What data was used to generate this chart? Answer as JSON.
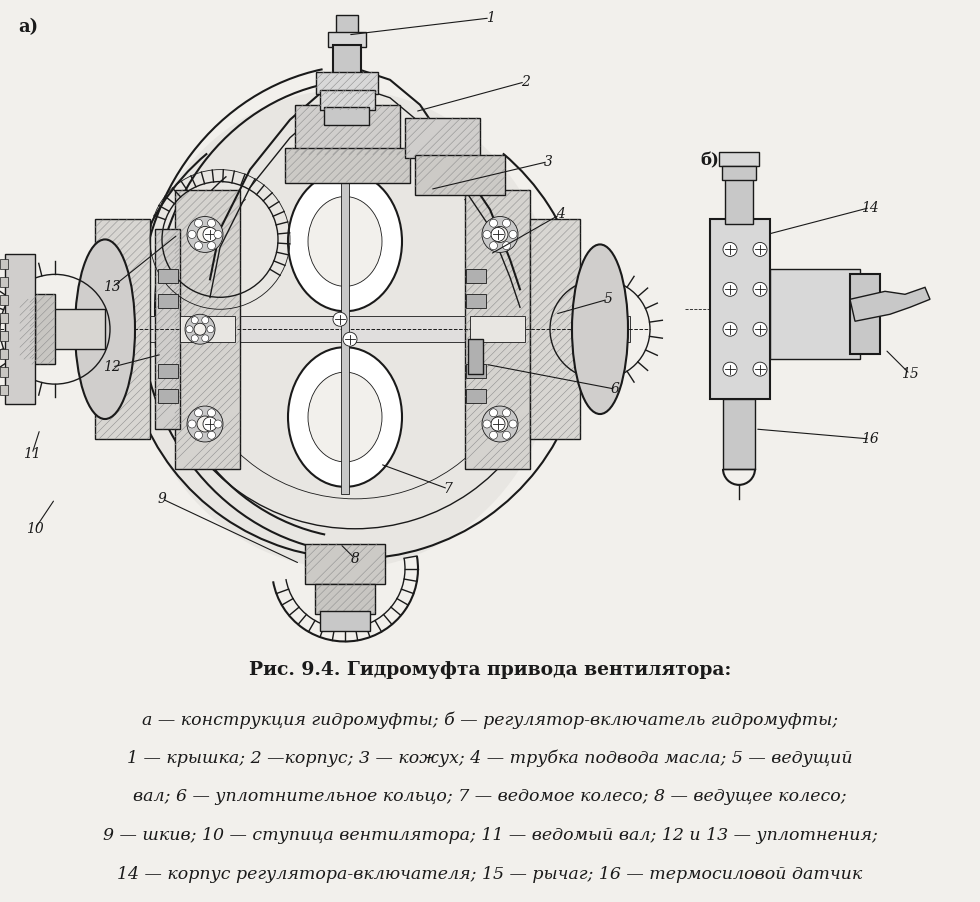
{
  "background_color": "#f2f0ec",
  "fig_width": 9.8,
  "fig_height": 9.02,
  "title_line": "Рис. 9.4. Гидромуфта привода вентилятора:",
  "caption_lines": [
    "а — конструкция гидромуфты; б — регулятор-включатель гидромуфты;",
    "1 — крышка; 2 —корпус; 3 — кожух; 4 — трубка подвода масла; 5 — ведущий",
    "вал; 6 — уплотнительное кольцо; 7 — ведомое колесо; 8 — ведущее колесо;",
    "9 — шкив; 10 — ступица вентилятора; 11 — ведомый вал; 12 и 13 — уплотнения;",
    "14 — корпус регулятора-включателя; 15 — рычаг; 16 — термосиловой датчик"
  ],
  "label_a": "а)",
  "label_b": "б)",
  "text_color": "#1a1a1a",
  "title_fontsize": 13.5,
  "caption_fontsize": 12.5,
  "lc": "#1a1a1a",
  "bg": "#f2f0ec",
  "white": "#ffffff",
  "gray1": "#c8c8c8",
  "gray2": "#d8d8d8",
  "gray3": "#b0b0b0",
  "hatch_gray": "#909090"
}
